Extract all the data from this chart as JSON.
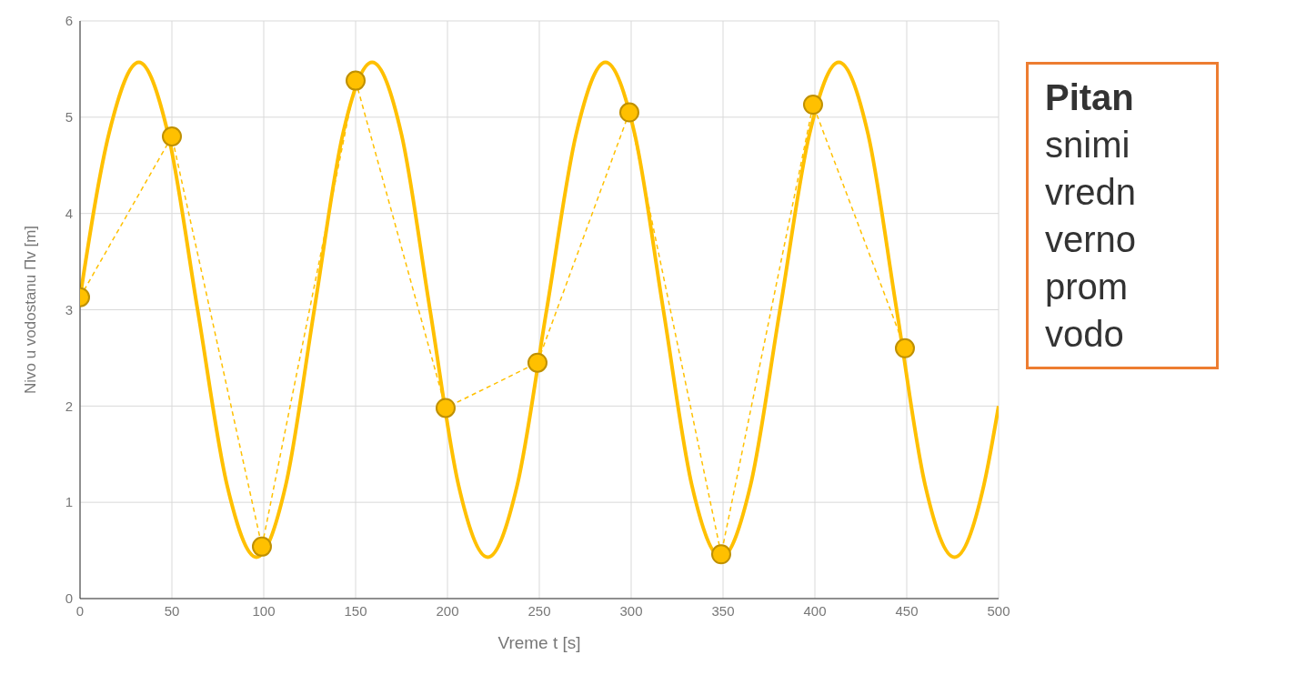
{
  "chart_data": {
    "type": "line",
    "xlabel": "Vreme t [s]",
    "ylabel": "Nivo u vodostanu Πv [m]",
    "xlim": [
      0,
      500
    ],
    "xticks": [
      0,
      50,
      100,
      150,
      200,
      250,
      300,
      350,
      400,
      450,
      500
    ],
    "ylim": [
      0,
      6
    ],
    "yticks": [
      0,
      1,
      2,
      3,
      4,
      5,
      6
    ],
    "grid": true,
    "series": [
      {
        "color": "#ffc000",
        "marker": "none",
        "line_style": "solid",
        "x": [
          0,
          16,
          32,
          48,
          64,
          80,
          96,
          112,
          127.5,
          143,
          159,
          175,
          190.5,
          206,
          222,
          238,
          254,
          270,
          286,
          302,
          317.5,
          333,
          349,
          365,
          381,
          397,
          413,
          429,
          444.5,
          460,
          476,
          492,
          500
        ],
        "values": [
          3.13,
          4.85,
          5.57,
          4.82,
          3.0,
          1.18,
          0.43,
          1.18,
          3.0,
          4.82,
          5.57,
          4.82,
          3.0,
          1.18,
          0.43,
          1.18,
          3.0,
          4.82,
          5.57,
          4.82,
          3.0,
          1.18,
          0.43,
          1.18,
          3.0,
          4.82,
          5.57,
          4.82,
          3.0,
          1.18,
          0.43,
          1.18,
          2.0
        ]
      },
      {
        "color": "#ffc000",
        "marker": "circle",
        "line_style": "dashed",
        "x": [
          0,
          50,
          99,
          150,
          199,
          249,
          299,
          349,
          399,
          449
        ],
        "values": [
          3.13,
          4.8,
          0.54,
          5.38,
          1.98,
          2.45,
          5.05,
          0.46,
          5.13,
          2.6
        ]
      }
    ],
    "annotations": [
      "Pitan",
      "snimi\nvredn\nverno\nprom\nvodo"
    ]
  }
}
